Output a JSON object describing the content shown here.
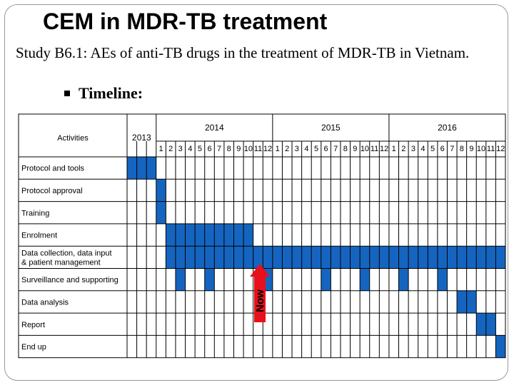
{
  "title": "CEM in MDR-TB treatment",
  "subtitle": "Study B6.1: AEs of anti-TB drugs in the treatment of MDR-TB in Vietnam.",
  "bullet": "Timeline:",
  "table": {
    "activities_header": "Activities",
    "year_2013": "2013",
    "years": [
      "2014",
      "2015",
      "2016"
    ],
    "months": [
      "1",
      "2",
      "3",
      "4",
      "5",
      "6",
      "7",
      "8",
      "9",
      "10",
      "11",
      "12"
    ],
    "rows": [
      {
        "label": "Protocol and tools",
        "cells": [
          0,
          1,
          2
        ]
      },
      {
        "label": "Protocol approval",
        "cells": [
          3
        ]
      },
      {
        "label": "Training",
        "cells": [
          3
        ]
      },
      {
        "label": "Enrolment",
        "cells": [
          4,
          5,
          6,
          7,
          8,
          9,
          10,
          11,
          12
        ]
      },
      {
        "label": "Data collection, data input & patient management",
        "cells": [
          4,
          5,
          6,
          7,
          8,
          9,
          10,
          11,
          12,
          13,
          14,
          15,
          16,
          17,
          18,
          19,
          20,
          21,
          22,
          23,
          24,
          25,
          26,
          27,
          28,
          29,
          30,
          31,
          32,
          33,
          34,
          35,
          36,
          37,
          38
        ]
      },
      {
        "label": "Surveillance and supporting",
        "cells": [
          5,
          8,
          14,
          20,
          24,
          28,
          32
        ]
      },
      {
        "label": "Data analysis",
        "cells": [
          34,
          35
        ]
      },
      {
        "label": "Report",
        "cells": [
          36,
          37
        ]
      },
      {
        "label": "End up",
        "cells": [
          38
        ]
      }
    ]
  },
  "now_label": "Now",
  "colors": {
    "fill": "#1565c0",
    "arrow": "#e8101a"
  }
}
